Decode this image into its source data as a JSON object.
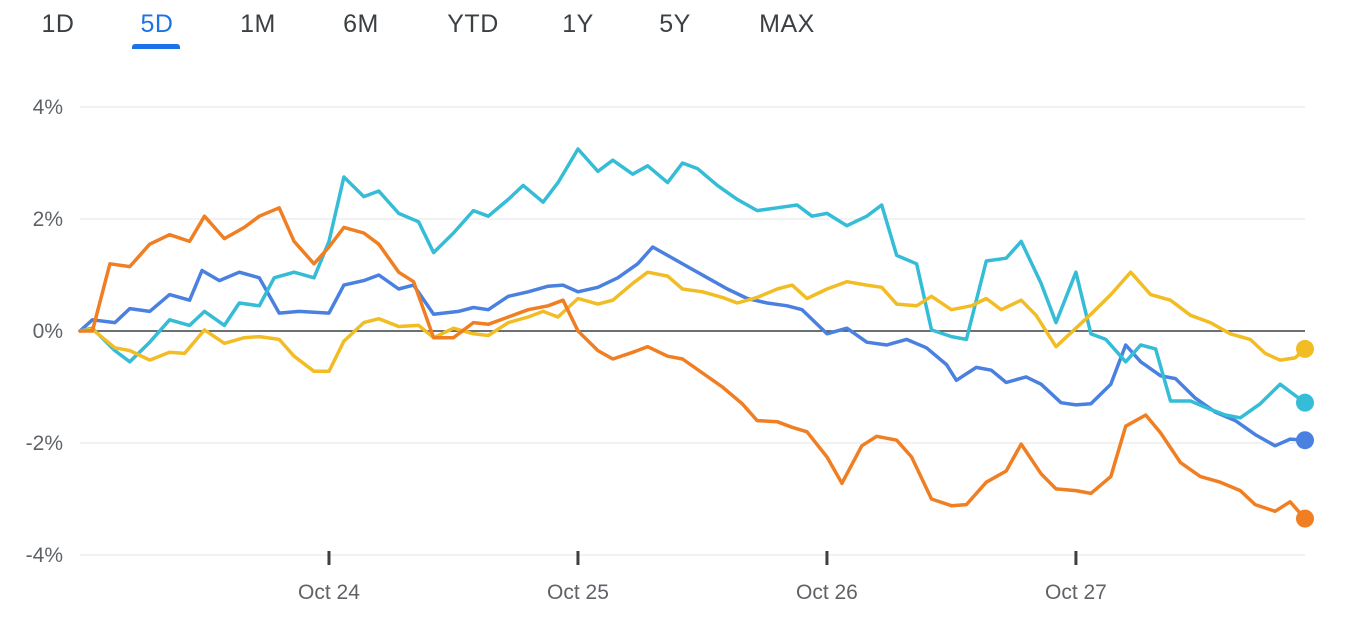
{
  "tabs": [
    {
      "label": "1D",
      "active": false
    },
    {
      "label": "5D",
      "active": true
    },
    {
      "label": "1M",
      "active": false
    },
    {
      "label": "6M",
      "active": false
    },
    {
      "label": "YTD",
      "active": false
    },
    {
      "label": "1Y",
      "active": false
    },
    {
      "label": "5Y",
      "active": false
    },
    {
      "label": "MAX",
      "active": false
    }
  ],
  "colors": {
    "accent": "#1a73e8",
    "blue": "#4a80e0",
    "cyan": "#35bcd6",
    "yellow": "#f2bd24",
    "orange": "#f07e22",
    "zero_line": "#3c4043",
    "grid": "#eeeeee"
  },
  "chart_data": {
    "type": "line",
    "title": "",
    "xlabel": "",
    "ylabel": "",
    "x_range": [
      23.0,
      27.92
    ],
    "ylim": [
      -4,
      4
    ],
    "y_ticks": [
      4,
      2,
      0,
      -2,
      -4
    ],
    "y_tick_labels": [
      "4%",
      "2%",
      "0%",
      "-2%",
      "-4%"
    ],
    "x_ticks": [
      24,
      25,
      26,
      27
    ],
    "x_tick_labels": [
      "Oct 24",
      "Oct 25",
      "Oct 26",
      "Oct 27"
    ],
    "grid": true,
    "legend": "none",
    "series": [
      {
        "color": "blue",
        "points": [
          [
            23.0,
            0.0
          ],
          [
            23.05,
            0.2
          ],
          [
            23.14,
            0.15
          ],
          [
            23.2,
            0.4
          ],
          [
            23.28,
            0.35
          ],
          [
            23.36,
            0.65
          ],
          [
            23.44,
            0.55
          ],
          [
            23.49,
            1.08
          ],
          [
            23.56,
            0.9
          ],
          [
            23.64,
            1.05
          ],
          [
            23.72,
            0.95
          ],
          [
            23.8,
            0.32
          ],
          [
            23.88,
            0.35
          ],
          [
            24.0,
            0.32
          ],
          [
            24.06,
            0.82
          ],
          [
            24.14,
            0.9
          ],
          [
            24.2,
            1.0
          ],
          [
            24.28,
            0.75
          ],
          [
            24.34,
            0.82
          ],
          [
            24.42,
            0.3
          ],
          [
            24.52,
            0.35
          ],
          [
            24.58,
            0.42
          ],
          [
            24.64,
            0.38
          ],
          [
            24.72,
            0.62
          ],
          [
            24.8,
            0.7
          ],
          [
            24.88,
            0.8
          ],
          [
            24.94,
            0.82
          ],
          [
            25.0,
            0.7
          ],
          [
            25.08,
            0.78
          ],
          [
            25.16,
            0.95
          ],
          [
            25.24,
            1.2
          ],
          [
            25.3,
            1.5
          ],
          [
            25.36,
            1.35
          ],
          [
            25.44,
            1.15
          ],
          [
            25.52,
            0.95
          ],
          [
            25.6,
            0.75
          ],
          [
            25.68,
            0.58
          ],
          [
            25.76,
            0.5
          ],
          [
            25.84,
            0.45
          ],
          [
            25.9,
            0.38
          ],
          [
            26.0,
            -0.05
          ],
          [
            26.08,
            0.05
          ],
          [
            26.16,
            -0.2
          ],
          [
            26.24,
            -0.25
          ],
          [
            26.32,
            -0.15
          ],
          [
            26.4,
            -0.3
          ],
          [
            26.48,
            -0.6
          ],
          [
            26.52,
            -0.88
          ],
          [
            26.6,
            -0.65
          ],
          [
            26.66,
            -0.7
          ],
          [
            26.72,
            -0.92
          ],
          [
            26.8,
            -0.82
          ],
          [
            26.86,
            -0.95
          ],
          [
            26.94,
            -1.28
          ],
          [
            27.0,
            -1.32
          ],
          [
            27.06,
            -1.3
          ],
          [
            27.14,
            -0.95
          ],
          [
            27.2,
            -0.25
          ],
          [
            27.26,
            -0.55
          ],
          [
            27.34,
            -0.8
          ],
          [
            27.4,
            -0.85
          ],
          [
            27.48,
            -1.2
          ],
          [
            27.56,
            -1.45
          ],
          [
            27.64,
            -1.6
          ],
          [
            27.72,
            -1.85
          ],
          [
            27.8,
            -2.05
          ],
          [
            27.86,
            -1.93
          ],
          [
            27.92,
            -1.95
          ]
        ]
      },
      {
        "color": "cyan",
        "points": [
          [
            23.0,
            0.0
          ],
          [
            23.05,
            0.05
          ],
          [
            23.14,
            -0.35
          ],
          [
            23.2,
            -0.55
          ],
          [
            23.28,
            -0.2
          ],
          [
            23.36,
            0.2
          ],
          [
            23.44,
            0.1
          ],
          [
            23.5,
            0.35
          ],
          [
            23.58,
            0.1
          ],
          [
            23.64,
            0.5
          ],
          [
            23.72,
            0.45
          ],
          [
            23.78,
            0.95
          ],
          [
            23.86,
            1.05
          ],
          [
            23.94,
            0.95
          ],
          [
            24.0,
            1.6
          ],
          [
            24.06,
            2.75
          ],
          [
            24.14,
            2.4
          ],
          [
            24.2,
            2.5
          ],
          [
            24.28,
            2.1
          ],
          [
            24.36,
            1.95
          ],
          [
            24.42,
            1.4
          ],
          [
            24.5,
            1.75
          ],
          [
            24.58,
            2.15
          ],
          [
            24.64,
            2.05
          ],
          [
            24.72,
            2.35
          ],
          [
            24.78,
            2.6
          ],
          [
            24.86,
            2.3
          ],
          [
            24.92,
            2.65
          ],
          [
            25.0,
            3.25
          ],
          [
            25.08,
            2.85
          ],
          [
            25.14,
            3.05
          ],
          [
            25.22,
            2.8
          ],
          [
            25.28,
            2.95
          ],
          [
            25.36,
            2.65
          ],
          [
            25.42,
            3.0
          ],
          [
            25.48,
            2.9
          ],
          [
            25.56,
            2.6
          ],
          [
            25.64,
            2.35
          ],
          [
            25.72,
            2.15
          ],
          [
            25.8,
            2.2
          ],
          [
            25.88,
            2.25
          ],
          [
            25.94,
            2.05
          ],
          [
            26.0,
            2.1
          ],
          [
            26.08,
            1.88
          ],
          [
            26.16,
            2.05
          ],
          [
            26.22,
            2.25
          ],
          [
            26.28,
            1.35
          ],
          [
            26.36,
            1.2
          ],
          [
            26.42,
            0.02
          ],
          [
            26.5,
            -0.1
          ],
          [
            26.56,
            -0.15
          ],
          [
            26.64,
            1.25
          ],
          [
            26.72,
            1.3
          ],
          [
            26.78,
            1.6
          ],
          [
            26.86,
            0.85
          ],
          [
            26.92,
            0.15
          ],
          [
            27.0,
            1.05
          ],
          [
            27.06,
            -0.05
          ],
          [
            27.12,
            -0.15
          ],
          [
            27.2,
            -0.55
          ],
          [
            27.26,
            -0.25
          ],
          [
            27.32,
            -0.32
          ],
          [
            27.38,
            -1.25
          ],
          [
            27.46,
            -1.25
          ],
          [
            27.54,
            -1.4
          ],
          [
            27.6,
            -1.5
          ],
          [
            27.66,
            -1.55
          ],
          [
            27.74,
            -1.3
          ],
          [
            27.82,
            -0.95
          ],
          [
            27.88,
            -1.15
          ],
          [
            27.92,
            -1.28
          ]
        ]
      },
      {
        "color": "yellow",
        "points": [
          [
            23.0,
            0.0
          ],
          [
            23.05,
            0.03
          ],
          [
            23.14,
            -0.3
          ],
          [
            23.2,
            -0.35
          ],
          [
            23.28,
            -0.52
          ],
          [
            23.36,
            -0.38
          ],
          [
            23.42,
            -0.4
          ],
          [
            23.5,
            0.02
          ],
          [
            23.58,
            -0.22
          ],
          [
            23.66,
            -0.12
          ],
          [
            23.72,
            -0.1
          ],
          [
            23.8,
            -0.15
          ],
          [
            23.86,
            -0.45
          ],
          [
            23.94,
            -0.72
          ],
          [
            24.0,
            -0.72
          ],
          [
            24.06,
            -0.18
          ],
          [
            24.14,
            0.15
          ],
          [
            24.2,
            0.22
          ],
          [
            24.28,
            0.08
          ],
          [
            24.36,
            0.1
          ],
          [
            24.42,
            -0.12
          ],
          [
            24.5,
            0.05
          ],
          [
            24.58,
            -0.05
          ],
          [
            24.64,
            -0.08
          ],
          [
            24.72,
            0.15
          ],
          [
            24.8,
            0.25
          ],
          [
            24.86,
            0.35
          ],
          [
            24.92,
            0.25
          ],
          [
            25.0,
            0.58
          ],
          [
            25.08,
            0.48
          ],
          [
            25.14,
            0.55
          ],
          [
            25.22,
            0.85
          ],
          [
            25.28,
            1.05
          ],
          [
            25.36,
            0.98
          ],
          [
            25.42,
            0.75
          ],
          [
            25.5,
            0.7
          ],
          [
            25.58,
            0.6
          ],
          [
            25.64,
            0.5
          ],
          [
            25.72,
            0.6
          ],
          [
            25.8,
            0.75
          ],
          [
            25.86,
            0.82
          ],
          [
            25.92,
            0.58
          ],
          [
            26.0,
            0.75
          ],
          [
            26.08,
            0.88
          ],
          [
            26.16,
            0.82
          ],
          [
            26.22,
            0.78
          ],
          [
            26.28,
            0.48
          ],
          [
            26.36,
            0.45
          ],
          [
            26.42,
            0.62
          ],
          [
            26.5,
            0.38
          ],
          [
            26.58,
            0.45
          ],
          [
            26.64,
            0.58
          ],
          [
            26.7,
            0.38
          ],
          [
            26.78,
            0.55
          ],
          [
            26.84,
            0.28
          ],
          [
            26.92,
            -0.28
          ],
          [
            27.0,
            0.05
          ],
          [
            27.06,
            0.3
          ],
          [
            27.14,
            0.65
          ],
          [
            27.22,
            1.05
          ],
          [
            27.3,
            0.65
          ],
          [
            27.38,
            0.55
          ],
          [
            27.46,
            0.28
          ],
          [
            27.54,
            0.15
          ],
          [
            27.62,
            -0.05
          ],
          [
            27.7,
            -0.15
          ],
          [
            27.76,
            -0.4
          ],
          [
            27.82,
            -0.52
          ],
          [
            27.88,
            -0.48
          ],
          [
            27.92,
            -0.32
          ]
        ]
      },
      {
        "color": "orange",
        "points": [
          [
            23.0,
            0.0
          ],
          [
            23.05,
            0.0
          ],
          [
            23.12,
            1.2
          ],
          [
            23.2,
            1.15
          ],
          [
            23.28,
            1.55
          ],
          [
            23.36,
            1.72
          ],
          [
            23.44,
            1.6
          ],
          [
            23.5,
            2.05
          ],
          [
            23.58,
            1.65
          ],
          [
            23.66,
            1.85
          ],
          [
            23.72,
            2.05
          ],
          [
            23.8,
            2.2
          ],
          [
            23.86,
            1.6
          ],
          [
            23.94,
            1.2
          ],
          [
            24.0,
            1.5
          ],
          [
            24.06,
            1.85
          ],
          [
            24.14,
            1.75
          ],
          [
            24.2,
            1.55
          ],
          [
            24.28,
            1.05
          ],
          [
            24.34,
            0.88
          ],
          [
            24.42,
            -0.12
          ],
          [
            24.5,
            -0.12
          ],
          [
            24.58,
            0.15
          ],
          [
            24.64,
            0.12
          ],
          [
            24.72,
            0.25
          ],
          [
            24.8,
            0.38
          ],
          [
            24.88,
            0.45
          ],
          [
            24.94,
            0.55
          ],
          [
            25.0,
            0.0
          ],
          [
            25.08,
            -0.35
          ],
          [
            25.14,
            -0.5
          ],
          [
            25.22,
            -0.38
          ],
          [
            25.28,
            -0.28
          ],
          [
            25.36,
            -0.45
          ],
          [
            25.42,
            -0.5
          ],
          [
            25.5,
            -0.75
          ],
          [
            25.58,
            -1.0
          ],
          [
            25.66,
            -1.3
          ],
          [
            25.72,
            -1.6
          ],
          [
            25.8,
            -1.62
          ],
          [
            25.86,
            -1.72
          ],
          [
            25.92,
            -1.8
          ],
          [
            26.0,
            -2.25
          ],
          [
            26.06,
            -2.72
          ],
          [
            26.14,
            -2.05
          ],
          [
            26.2,
            -1.88
          ],
          [
            26.28,
            -1.95
          ],
          [
            26.34,
            -2.25
          ],
          [
            26.42,
            -3.0
          ],
          [
            26.5,
            -3.12
          ],
          [
            26.56,
            -3.1
          ],
          [
            26.64,
            -2.7
          ],
          [
            26.72,
            -2.5
          ],
          [
            26.78,
            -2.02
          ],
          [
            26.86,
            -2.55
          ],
          [
            26.92,
            -2.82
          ],
          [
            27.0,
            -2.85
          ],
          [
            27.06,
            -2.9
          ],
          [
            27.14,
            -2.6
          ],
          [
            27.2,
            -1.7
          ],
          [
            27.28,
            -1.5
          ],
          [
            27.34,
            -1.82
          ],
          [
            27.42,
            -2.35
          ],
          [
            27.5,
            -2.6
          ],
          [
            27.58,
            -2.7
          ],
          [
            27.66,
            -2.85
          ],
          [
            27.72,
            -3.1
          ],
          [
            27.8,
            -3.22
          ],
          [
            27.86,
            -3.05
          ],
          [
            27.92,
            -3.35
          ]
        ]
      }
    ]
  }
}
